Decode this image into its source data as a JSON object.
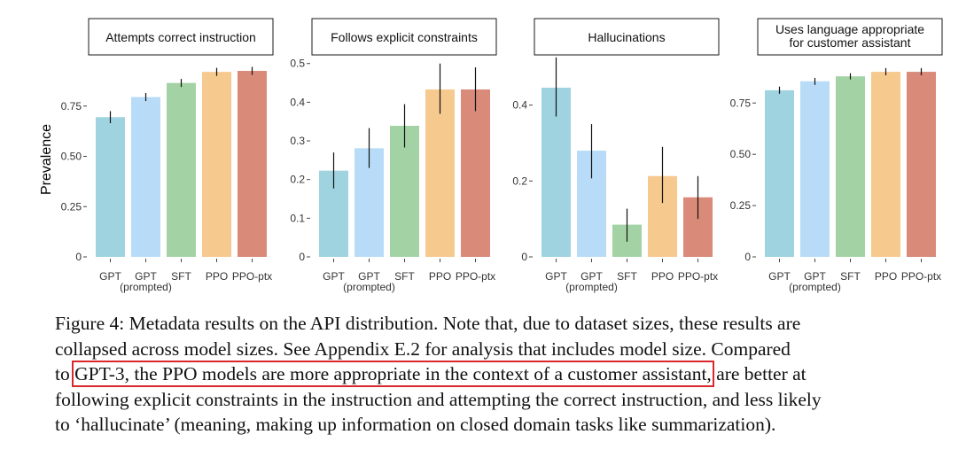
{
  "y_axis_label": "Prevalence",
  "x_sublabel": "(prompted)",
  "colors": [
    "#9fd3e0",
    "#b8dcf8",
    "#a3d3a5",
    "#f6c98f",
    "#d98a79"
  ],
  "chart_data": [
    {
      "type": "bar",
      "title": "Attempts correct instruction",
      "categories": [
        "GPT",
        "GPT",
        "SFT",
        "PPO",
        "PPO-ptx"
      ],
      "values": [
        0.695,
        0.795,
        0.865,
        0.92,
        0.925
      ],
      "error_low": [
        0.665,
        0.775,
        0.845,
        0.9,
        0.905
      ],
      "error_high": [
        0.725,
        0.815,
        0.885,
        0.94,
        0.945
      ],
      "ylim": [
        0,
        1.0
      ],
      "yticks": [
        0,
        0.25,
        0.5,
        0.75
      ],
      "ytick_labels": [
        "0",
        "0.25",
        "0.50",
        "0.75"
      ],
      "ylabel": "Prevalence"
    },
    {
      "type": "bar",
      "title": "Follows explicit constraints",
      "categories": [
        "GPT",
        "GPT",
        "SFT",
        "PPO",
        "PPO-ptx"
      ],
      "values": [
        0.223,
        0.281,
        0.339,
        0.433,
        0.433
      ],
      "error_low": [
        0.177,
        0.23,
        0.283,
        0.37,
        0.377
      ],
      "error_high": [
        0.27,
        0.333,
        0.395,
        0.5,
        0.49
      ],
      "ylim": [
        0,
        0.52
      ],
      "yticks": [
        0,
        0.1,
        0.2,
        0.3,
        0.4,
        0.5
      ],
      "ytick_labels": [
        "0",
        "0.1",
        "0.2",
        "0.3",
        "0.4",
        "0.5"
      ]
    },
    {
      "type": "bar",
      "title": "Hallucinations",
      "categories": [
        "GPT",
        "GPT",
        "SFT",
        "PPO",
        "PPO-ptx"
      ],
      "values": [
        0.446,
        0.28,
        0.085,
        0.213,
        0.157
      ],
      "error_low": [
        0.37,
        0.207,
        0.04,
        0.142,
        0.1
      ],
      "error_high": [
        0.526,
        0.35,
        0.127,
        0.29,
        0.213
      ],
      "ylim": [
        0,
        0.53
      ],
      "yticks": [
        0,
        0.2,
        0.4
      ],
      "ytick_labels": [
        "0",
        "0.2",
        "0.4"
      ]
    },
    {
      "type": "bar",
      "title": [
        "Uses language appropriate",
        "for customer assistant"
      ],
      "categories": [
        "GPT",
        "GPT",
        "SFT",
        "PPO",
        "PPO-ptx"
      ],
      "values": [
        0.812,
        0.856,
        0.88,
        0.902,
        0.902
      ],
      "error_low": [
        0.795,
        0.838,
        0.865,
        0.885,
        0.885
      ],
      "error_high": [
        0.83,
        0.872,
        0.895,
        0.92,
        0.92
      ],
      "ylim": [
        0,
        0.98
      ],
      "yticks": [
        0,
        0.25,
        0.5,
        0.75
      ],
      "ytick_labels": [
        "0",
        "0.25",
        "0.50",
        "0.75"
      ]
    }
  ],
  "caption": {
    "line1": "Figure 4: Metadata results on the API distribution. Note that, due to dataset sizes, these results are",
    "line2": "collapsed across model sizes. See Appendix E.2 for analysis that includes model size. Compared",
    "line3_before": "to ",
    "line3_highlight": "GPT-3, the PPO models are more appropriate in the context of a customer assistant,",
    "line3_after": " are better at",
    "line4": "following explicit constraints in the instruction and attempting the correct instruction, and less likely",
    "line5": "to ‘hallucinate’ (meaning, making up information on closed domain tasks like summarization)."
  }
}
